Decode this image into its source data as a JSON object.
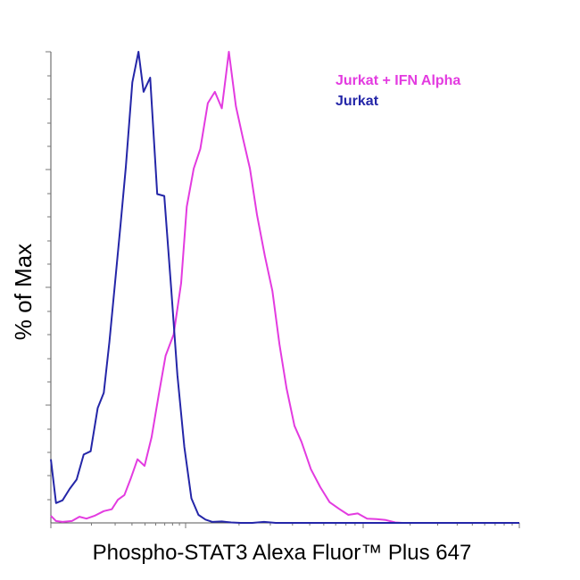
{
  "chart_data": {
    "type": "line",
    "xlabel": "Phospho-STAT3  Alexa Fluor™ Plus 647",
    "ylabel": "% of Max",
    "x_scale": "log",
    "xlim": [
      0,
      100
    ],
    "ylim": [
      0,
      100
    ],
    "grid": false,
    "legend_position": "top-right",
    "series": [
      {
        "name": "Jurkat + IFN Alpha",
        "color": "#e33be0",
        "x": [
          0,
          1.1,
          2.5,
          4.5,
          6.1,
          7.6,
          9.3,
          11.3,
          13.0,
          14.3,
          15.7,
          17.0,
          18.5,
          20.0,
          21.5,
          23.0,
          24.5,
          26.2,
          27.8,
          29.0,
          30.5,
          31.9,
          33.5,
          35.0,
          36.5,
          38.0,
          39.5,
          41.0,
          42.5,
          44.0,
          45.7,
          47.3,
          48.8,
          50.3,
          52.0,
          53.5,
          55.5,
          57.5,
          59.5,
          61.5,
          63.5,
          65.5,
          67.5,
          69.5,
          71.5,
          73.5,
          75.0,
          77.0,
          79.5,
          83.0,
          88.0,
          93.0,
          98.0,
          100
        ],
        "y": [
          1.5,
          0.4,
          0.2,
          0.4,
          1.3,
          0.9,
          1.5,
          2.5,
          2.9,
          4.9,
          5.9,
          9.3,
          13.5,
          12.1,
          18.2,
          27.1,
          35.5,
          40.0,
          50.9,
          67.1,
          75.2,
          79.4,
          89.1,
          91.5,
          88.0,
          100,
          88.4,
          81.6,
          75.2,
          65.4,
          56.6,
          49.2,
          37.9,
          28.6,
          20.6,
          17.2,
          11.4,
          7.6,
          4.4,
          3.0,
          1.7,
          2.0,
          0.9,
          0.8,
          0.6,
          0.1,
          0,
          0,
          0,
          0,
          0,
          0,
          0,
          0
        ]
      },
      {
        "name": "Jurkat",
        "color": "#2426a8",
        "x": [
          0,
          1.1,
          2.5,
          4.0,
          5.5,
          7.0,
          8.5,
          10.0,
          11.3,
          12.5,
          13.7,
          14.9,
          16.0,
          17.4,
          18.7,
          19.8,
          21.2,
          22.7,
          24.2,
          25.7,
          27.0,
          28.5,
          30.0,
          31.5,
          33.0,
          34.5,
          36.5,
          38.5,
          40.5,
          43.0,
          45.5,
          48.0,
          51.0,
          55.0,
          60.0,
          65.0,
          70.0,
          75.0,
          80.0,
          85.0,
          90.0,
          95.0,
          100
        ],
        "y": [
          13.5,
          4.2,
          4.8,
          7.2,
          9.2,
          14.5,
          15.2,
          24.4,
          27.6,
          38.4,
          50.9,
          63.5,
          75.5,
          93.5,
          100,
          91.5,
          94.5,
          69.8,
          69.4,
          49.6,
          31.4,
          16.1,
          5.2,
          1.7,
          0.7,
          0.2,
          0.3,
          0.1,
          0,
          0,
          0.2,
          0,
          0,
          0,
          0,
          0,
          0,
          0,
          0,
          0,
          0,
          0,
          0
        ]
      }
    ]
  }
}
